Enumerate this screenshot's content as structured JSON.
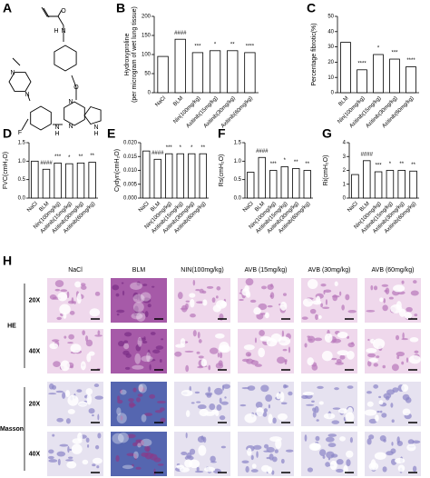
{
  "panel_labels": [
    "A",
    "B",
    "C",
    "D",
    "E",
    "F",
    "G",
    "H"
  ],
  "structure": {
    "atoms": [
      "O",
      "N",
      "H",
      "O",
      "N",
      "N",
      "F",
      "N",
      "H",
      "N",
      "N",
      "N",
      "H"
    ]
  },
  "chart_data": [
    {
      "type": "bar",
      "ylabel": [
        "Hydroxyproline",
        "(per microgram of wet lung tissue)"
      ],
      "categories": [
        "NaCl",
        "BLM",
        "Nin(100mg/kg)",
        "Axitinib(15mg/kg)",
        "Axitinib(30mg/kg)",
        "Axitinib(60mg/kg)"
      ],
      "values": [
        95,
        140,
        105,
        110,
        110,
        105
      ],
      "annotations": [
        null,
        "####",
        "***",
        "*",
        "**",
        "****"
      ],
      "color": "#ffffff",
      "ylim": [
        0,
        200
      ],
      "yticks": [
        0,
        50,
        100,
        150,
        200
      ]
    },
    {
      "type": "bar",
      "ylabel": [
        "Percentage fibrotic(%)"
      ],
      "categories": [
        "BLM",
        "Nin(100mg/kg)",
        "Axitinib(15mg/kg)",
        "Axitinib(30mg/kg)",
        "Axitinib(60mg/kg)"
      ],
      "values": [
        33,
        15,
        25,
        22,
        17
      ],
      "annotations": [
        null,
        "****",
        "*",
        "***",
        "****"
      ],
      "color": "#ffffff",
      "ylim": [
        0,
        50
      ],
      "yticks": [
        0,
        10,
        20,
        30,
        40,
        50
      ]
    },
    {
      "type": "bar",
      "ylabel": [
        "FVC(cmH₂O)"
      ],
      "categories": [
        "NaCl",
        "BLM",
        "Nin(100mg/kg)",
        "Axitinib(15mg/kg)",
        "Axitinib(30mg/kg)",
        "Axitinib(60mg/kg)"
      ],
      "values": [
        1.0,
        0.78,
        0.95,
        0.93,
        0.95,
        0.97
      ],
      "annotations": [
        null,
        "####",
        "***",
        "*",
        "**",
        "**"
      ],
      "color": "#ffffff",
      "ylim": [
        0,
        1.5
      ],
      "yticks": [
        {
          "value": 0,
          "label": "0.0"
        },
        0.5,
        {
          "value": 1,
          "label": "1.0"
        },
        1.5
      ]
    },
    {
      "type": "bar",
      "ylabel": [
        "Cydyn(cmH₂O)"
      ],
      "categories": [
        "NaCl",
        "BLM",
        "Nin(100mg/kg)",
        "Axitinib(15mg/kg)",
        "Axitinib(30mg/kg)",
        "Axitinib(60mg/kg)"
      ],
      "values": [
        0.017,
        0.014,
        0.016,
        0.016,
        0.016,
        0.016
      ],
      "annotations": [
        null,
        "####",
        "***",
        "*",
        "*",
        "**"
      ],
      "color": "#ffffff",
      "ylim": [
        0,
        0.02
      ],
      "yticks": [
        {
          "value": 0,
          "label": "0.000"
        },
        0.005,
        {
          "value": 0.01,
          "label": "0.010"
        },
        0.015,
        {
          "value": 0.02,
          "label": "0.020"
        }
      ]
    },
    {
      "type": "bar",
      "ylabel": [
        "Rs(cmH₂O)"
      ],
      "categories": [
        "NaCl",
        "BLM",
        "Nin(100mg/kg)",
        "Axitinib(15mg/kg)",
        "Axitinib(30mg/kg)",
        "Axitinib(60mg/kg)"
      ],
      "values": [
        0.7,
        1.1,
        0.75,
        0.85,
        0.8,
        0.75
      ],
      "annotations": [
        null,
        "####",
        "***",
        "*",
        "**",
        "**"
      ],
      "color": "#ffffff",
      "ylim": [
        0,
        1.5
      ],
      "yticks": [
        {
          "value": 0,
          "label": "0.0"
        },
        0.5,
        {
          "value": 1,
          "label": "1.0"
        },
        1.5
      ]
    },
    {
      "type": "bar",
      "ylabel": [
        "Ri(cmH₂O)"
      ],
      "categories": [
        "NaCl",
        "BLM",
        "Nin(100mg/kg)",
        "Axitinib(15mg/kg)",
        "Axitinib(30mg/kg)",
        "Axitinib(60mg/kg)"
      ],
      "values": [
        1.7,
        2.7,
        1.9,
        2.0,
        2.0,
        1.95
      ],
      "annotations": [
        null,
        "####",
        "***",
        "*",
        "**",
        "**"
      ],
      "color": "#ffffff",
      "ylim": [
        0,
        4
      ],
      "yticks": [
        0,
        1,
        2,
        3,
        4
      ]
    }
  ],
  "histology": {
    "columns": [
      "NaCl",
      "BLM",
      "NIN(100mg/kg)",
      "AVB (15mg/kg)",
      "AVB (30mg/kg)",
      "AVB (60mg/kg)"
    ],
    "stains": [
      "HE",
      "Masson"
    ],
    "magnifications": [
      "20X",
      "40X"
    ]
  }
}
